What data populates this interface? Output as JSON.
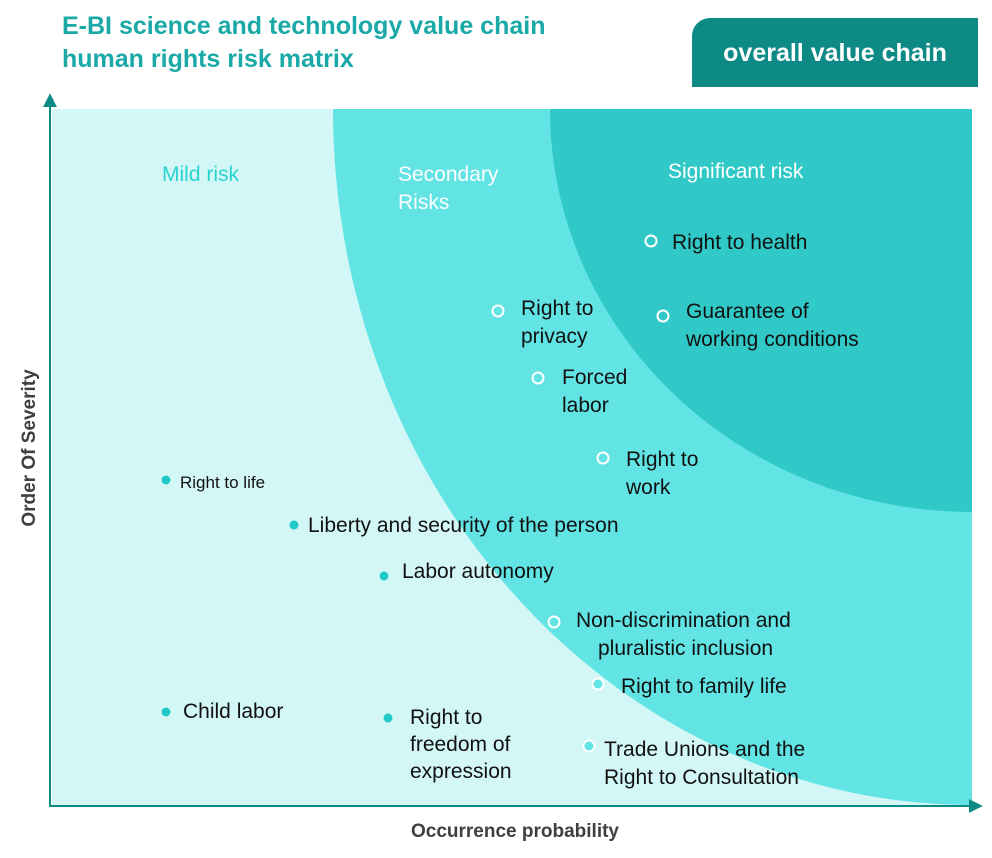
{
  "title": "E-BI science and technology value chain human rights risk matrix",
  "badge": "overall value chain",
  "axes": {
    "x_label": "Occurrence probability",
    "y_label": "Order Of Severity"
  },
  "zones": [
    {
      "id": "mild",
      "lines": [
        "Mild risk"
      ],
      "color": "#d3f7f6",
      "text_color": "#2ad4d0"
    },
    {
      "id": "secondary",
      "lines": [
        "Secondary",
        "Risks"
      ],
      "color": "#62e4e5",
      "text_color": "#ffffff"
    },
    {
      "id": "significant",
      "lines": [
        "Significant risk"
      ],
      "color": "#30c9c7",
      "text_color": "#ffffff"
    }
  ],
  "risk_items": [
    {
      "lines": [
        "Right to health"
      ],
      "zone": "significant"
    },
    {
      "lines": [
        "Right to",
        "privacy"
      ],
      "zone": "secondary"
    },
    {
      "lines": [
        "Guarantee of",
        "working conditions"
      ],
      "zone": "significant"
    },
    {
      "lines": [
        "Forced",
        "labor"
      ],
      "zone": "secondary"
    },
    {
      "lines": [
        "Right to",
        "work"
      ],
      "zone": "secondary"
    },
    {
      "lines": [
        "Right to life"
      ],
      "zone": "mild"
    },
    {
      "lines": [
        "Liberty and security of the person"
      ],
      "zone": "mild"
    },
    {
      "lines": [
        "Labor autonomy"
      ],
      "zone": "mild"
    },
    {
      "lines": [
        "Non-discrimination and",
        "pluralistic inclusion"
      ],
      "zone": "secondary"
    },
    {
      "lines": [
        "Right to family life"
      ],
      "zone": "secondary"
    },
    {
      "lines": [
        "Child labor"
      ],
      "zone": "mild"
    },
    {
      "lines": [
        "Right to",
        "freedom of",
        "expression"
      ],
      "zone": "mild"
    },
    {
      "lines": [
        "Trade Unions and the",
        "Right to Consultation"
      ],
      "zone": "secondary"
    }
  ]
}
